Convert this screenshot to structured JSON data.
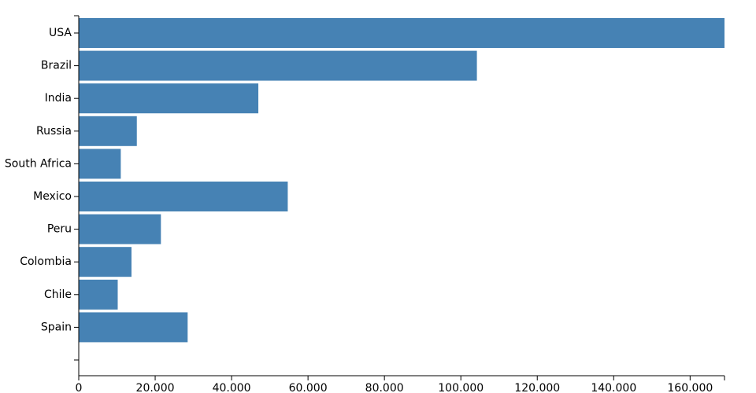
{
  "chart_data": {
    "type": "bar",
    "orientation": "horizontal",
    "categories": [
      "USA",
      "Brazil",
      "India",
      "Russia",
      "South Africa",
      "Mexico",
      "Peru",
      "Colombia",
      "Chile",
      "Spain"
    ],
    "values": [
      169000,
      104200,
      47000,
      15200,
      11000,
      54700,
      21500,
      13800,
      10200,
      28500
    ],
    "xlim": [
      0,
      169000
    ],
    "x_ticks": [
      0,
      20000,
      40000,
      60000,
      80000,
      100000,
      120000,
      140000,
      160000
    ],
    "x_tick_labels": [
      "0",
      "20.000",
      "40.000",
      "60.000",
      "80.000",
      "100.000",
      "120.000",
      "140.000",
      "160.000"
    ],
    "title": "",
    "xlabel": "",
    "ylabel": "",
    "grid": false,
    "legend": "none",
    "bar_color": "#4682b4"
  }
}
